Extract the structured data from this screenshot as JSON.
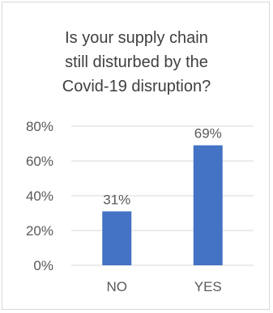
{
  "chart_data": {
    "type": "bar",
    "title_lines": [
      "Is your supply chain",
      "still disturbed by the",
      "Covid-19 disruption?"
    ],
    "categories": [
      "NO",
      "YES"
    ],
    "series": [
      {
        "values": [
          31,
          69
        ]
      }
    ],
    "data_labels": [
      "31%",
      "69%"
    ],
    "y_ticks": [
      "0%",
      "20%",
      "40%",
      "60%",
      "80%"
    ],
    "ylim": [
      0,
      80
    ],
    "y_unit": "percent",
    "grid": true,
    "legend": "none",
    "bar_color": "#4472c4"
  }
}
